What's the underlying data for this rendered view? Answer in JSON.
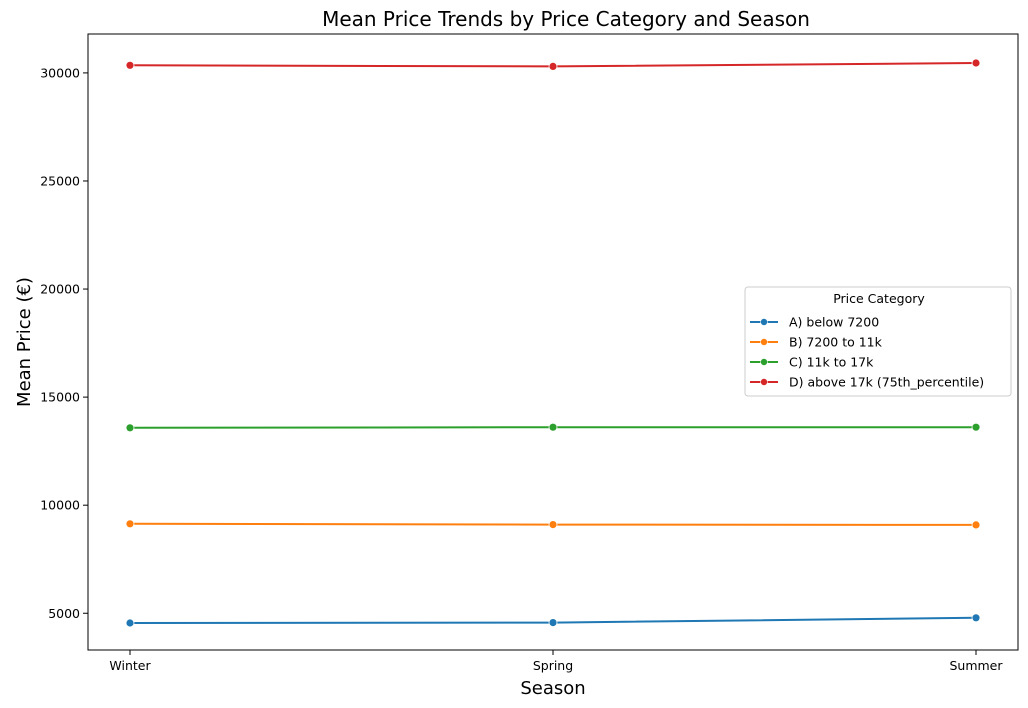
{
  "chart_data": {
    "type": "line",
    "title": "Mean Price Trends by Price Category and Season",
    "xlabel": "Season",
    "ylabel": "Mean Price (€)",
    "categories": [
      "Winter",
      "Spring",
      "Summer"
    ],
    "ylim": [
      3300,
      31800
    ],
    "yticks": [
      5000,
      10000,
      15000,
      20000,
      25000,
      30000
    ],
    "grid": false,
    "legend": {
      "title": "Price Category",
      "placement": "center-right"
    },
    "series": [
      {
        "name": "A) below 7200",
        "color": "#1f77b4",
        "values": [
          4550,
          4570,
          4790
        ]
      },
      {
        "name": "B) 7200 to 11k",
        "color": "#ff7f0e",
        "values": [
          9140,
          9100,
          9090
        ]
      },
      {
        "name": "C) 11k to 17k",
        "color": "#2ca02c",
        "values": [
          13580,
          13610,
          13610
        ]
      },
      {
        "name": "D) above 17k (75th_percentile)",
        "color": "#d62728",
        "values": [
          30350,
          30300,
          30460
        ]
      }
    ]
  }
}
